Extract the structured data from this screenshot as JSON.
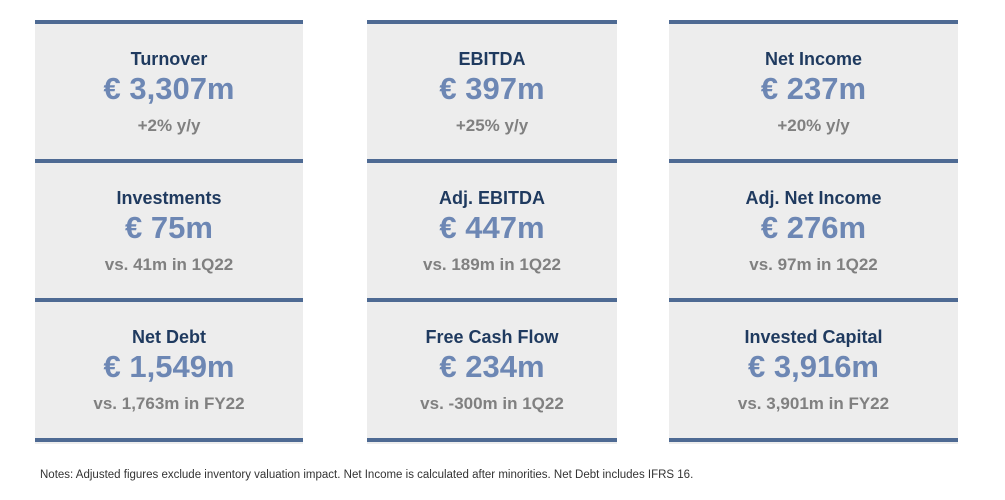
{
  "colors": {
    "accent_bar": "#4e6a93",
    "title_text": "#1f3a5f",
    "value_text": "#6d87b4",
    "sub_text": "#808080",
    "panel_bg": "#ededed"
  },
  "kpis": [
    [
      {
        "title": "Turnover",
        "value": "€ 3,307m",
        "sub": "+2% y/y"
      },
      {
        "title": "Investments",
        "value": "€ 75m",
        "sub": "vs. 41m in 1Q22"
      },
      {
        "title": "Net Debt",
        "value": "€ 1,549m",
        "sub": "vs. 1,763m in FY22"
      }
    ],
    [
      {
        "title": "EBITDA",
        "value": "€ 397m",
        "sub": "+25% y/y"
      },
      {
        "title": "Adj. EBITDA",
        "value": "€ 447m",
        "sub": "vs. 189m in 1Q22"
      },
      {
        "title": "Free Cash Flow",
        "value": "€ 234m",
        "sub": "vs. -300m in 1Q22"
      }
    ],
    [
      {
        "title": "Net Income",
        "value": "€ 237m",
        "sub": "+20% y/y"
      },
      {
        "title": "Adj. Net Income",
        "value": "€ 276m",
        "sub": "vs. 97m in 1Q22"
      },
      {
        "title": "Invested Capital",
        "value": "€ 3,916m",
        "sub": "vs. 3,901m in FY22"
      }
    ]
  ],
  "notes": "Notes: Adjusted figures exclude inventory valuation impact. Net Income is calculated after minorities. Net Debt includes IFRS 16."
}
